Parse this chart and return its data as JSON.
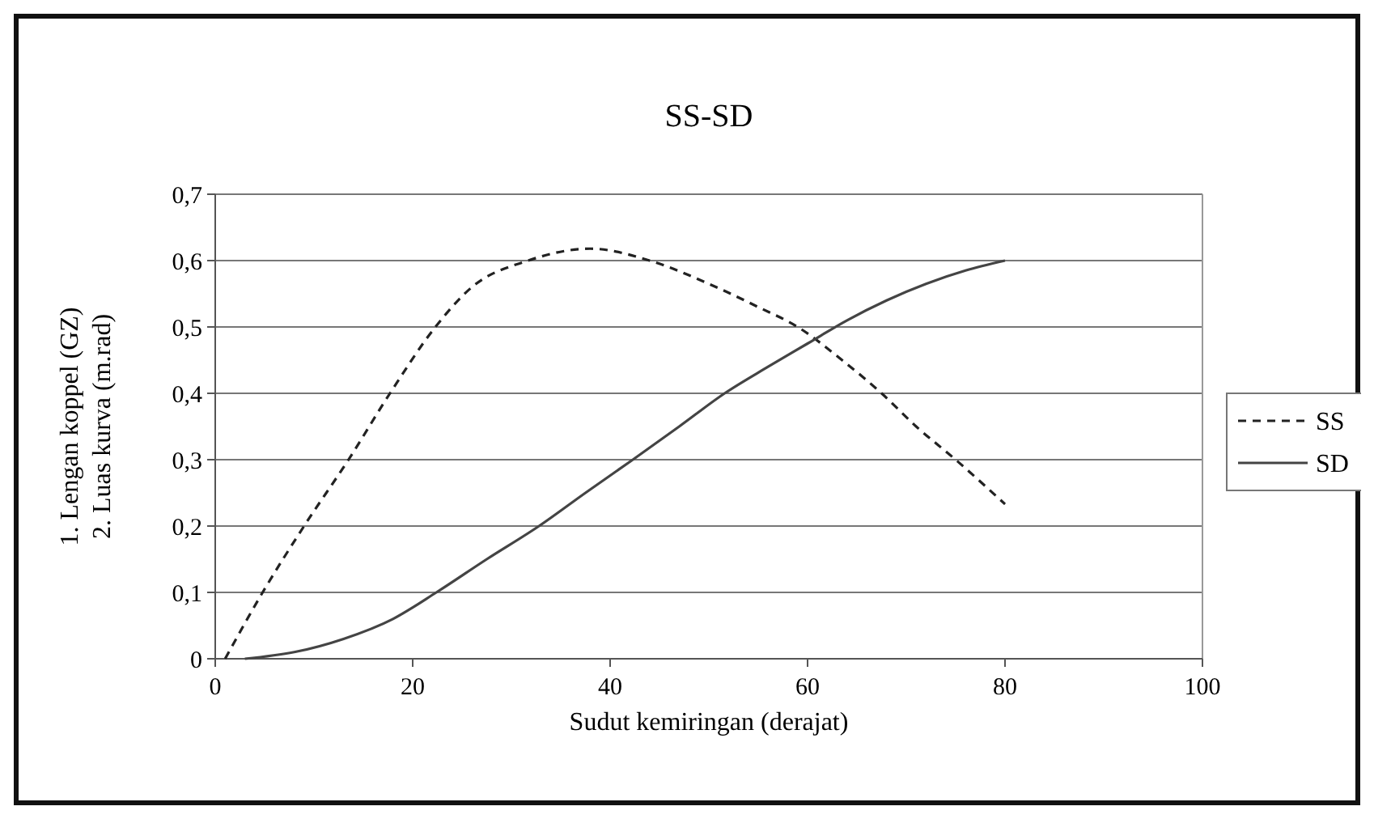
{
  "chart_data": {
    "type": "line",
    "title": "SS-SD",
    "xlabel": "Sudut kemiringan (derajat)",
    "ylabel": "1. Lengan koppel (GZ)\n2. Luas kurva (m.rad)",
    "xlim": [
      0,
      100
    ],
    "xticks": [
      0,
      20,
      40,
      60,
      80,
      100
    ],
    "ylim": [
      0,
      0.7
    ],
    "yticks": [
      0,
      {
        "value": 0.1,
        "label": "0,1"
      },
      {
        "value": 0.2,
        "label": "0,2"
      },
      {
        "value": 0.3,
        "label": "0,3"
      },
      {
        "value": 0.4,
        "label": "0,4"
      },
      {
        "value": 0.5,
        "label": "0,5"
      },
      {
        "value": 0.6,
        "label": "0,6"
      },
      {
        "value": 0.7,
        "label": "0,7"
      }
    ],
    "grid": "y",
    "legend": "right",
    "series": [
      {
        "name": "SS",
        "color": "#222222",
        "line_style": "dashed",
        "x": [
          1,
          4.8,
          9,
          13.5,
          17.7,
          22.3,
          26,
          31.7,
          38,
          44,
          50,
          55,
          59,
          63.5,
          67.5,
          71,
          75,
          80
        ],
        "values": [
          0,
          0.1,
          0.2,
          0.3,
          0.4,
          0.5,
          0.56,
          0.6,
          0.618,
          0.6,
          0.565,
          0.53,
          0.5,
          0.45,
          0.4,
          0.35,
          0.3,
          0.233
        ]
      },
      {
        "name": "SD",
        "color": "#444444",
        "line_style": "solid",
        "x": [
          3,
          8,
          13,
          18,
          22.4,
          27.5,
          32.8,
          37.5,
          42.3,
          47,
          51.6,
          56,
          60,
          64,
          68,
          72,
          76,
          80
        ],
        "values": [
          0,
          0.01,
          0.03,
          0.06,
          0.1,
          0.15,
          0.2,
          0.25,
          0.3,
          0.35,
          0.4,
          0.44,
          0.475,
          0.51,
          0.54,
          0.565,
          0.585,
          0.6
        ]
      }
    ]
  }
}
